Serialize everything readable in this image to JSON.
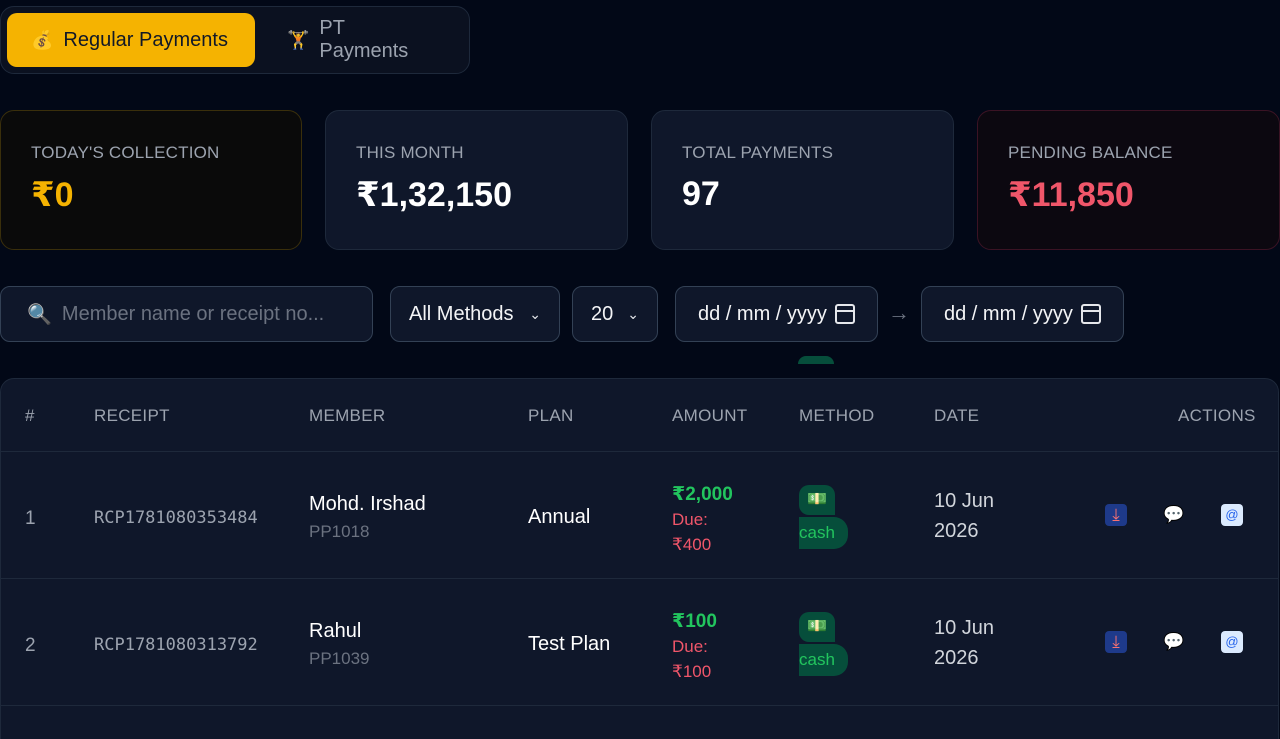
{
  "tabs": [
    {
      "label": "Regular Payments",
      "icon": "money-bag-icon",
      "glyph": "💰"
    },
    {
      "label": "PT Payments",
      "icon": "dumbbell-icon",
      "glyph": "🏋"
    }
  ],
  "stats": {
    "today": {
      "label": "TODAY'S COLLECTION",
      "value": "₹0"
    },
    "month": {
      "label": "THIS MONTH",
      "value": "₹1,32,150"
    },
    "total": {
      "label": "TOTAL PAYMENTS",
      "value": "97"
    },
    "pending": {
      "label": "PENDING BALANCE",
      "value": "₹11,850"
    }
  },
  "filters": {
    "search_placeholder": "Member name or receipt no...",
    "method": "All Methods",
    "page_size": "20",
    "date_from": "dd / mm / yyyy",
    "date_to": "dd / mm / yyyy",
    "arrow": "→"
  },
  "table": {
    "headers": [
      "#",
      "RECEIPT",
      "MEMBER",
      "PLAN",
      "AMOUNT",
      "METHOD",
      "DATE",
      "ACTIONS"
    ],
    "rows": [
      {
        "idx": "1",
        "receipt": "RCP1781080353484",
        "name": "Mohd. Irshad",
        "member_id": "PP1018",
        "plan": "Annual",
        "paid": "₹2,000",
        "due_label": "Due:",
        "due": "₹400",
        "method": "cash",
        "date_day": "10 Jun",
        "date_year": "2026"
      },
      {
        "idx": "2",
        "receipt": "RCP1781080313792",
        "name": "Rahul",
        "member_id": "PP1039",
        "plan": "Test Plan",
        "paid": "₹100",
        "due_label": "Due:",
        "due": "₹100",
        "method": "cash",
        "date_day": "10 Jun",
        "date_year": "2026"
      }
    ]
  },
  "colors": {
    "accent": "#f5b301",
    "paid": "#22c55e",
    "due": "#f0566a",
    "bg": "#020817"
  }
}
